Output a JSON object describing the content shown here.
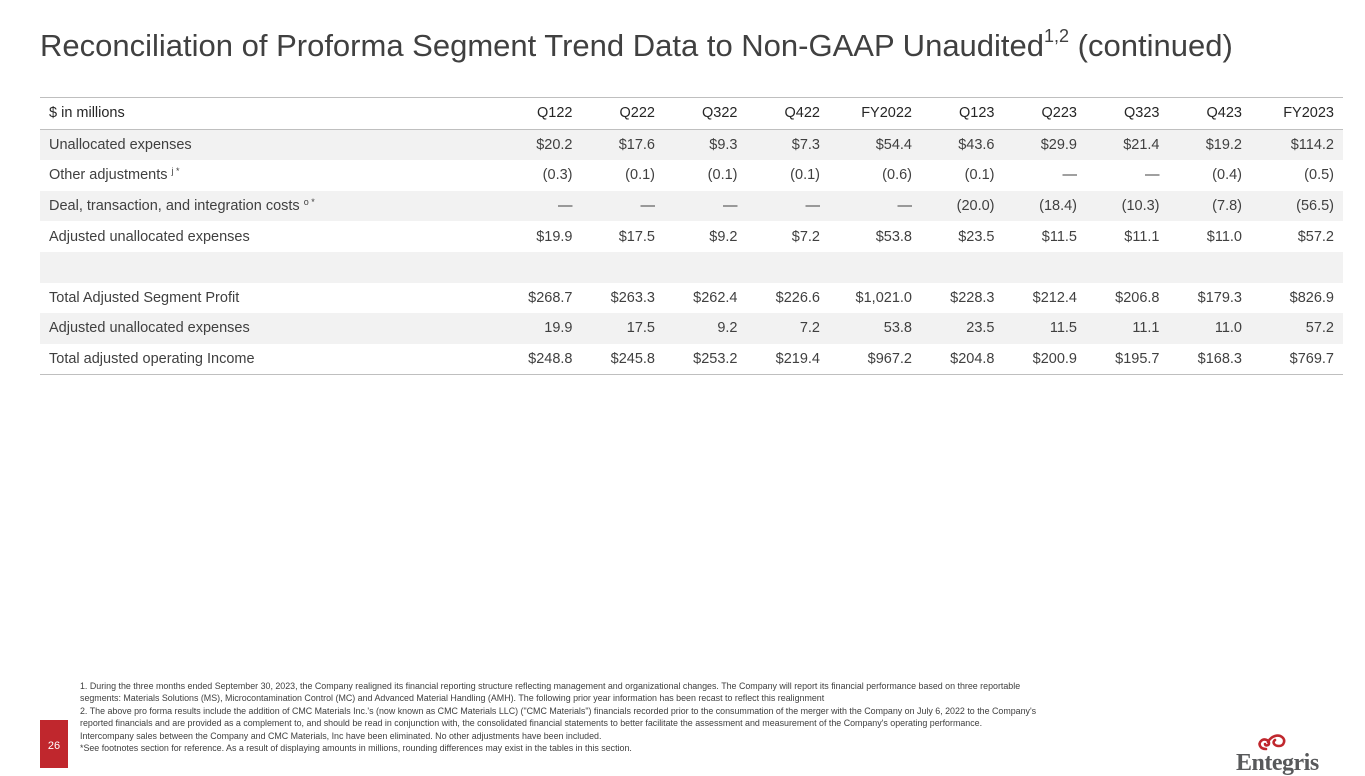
{
  "page": {
    "title_main": "Reconciliation of Proforma Segment Trend Data to Non-GAAP Unaudited",
    "title_sup": "1,2",
    "title_suffix": " (continued)",
    "page_number": "26",
    "logo_text": "Entegris"
  },
  "table": {
    "header_label": "$ in millions",
    "columns": [
      "Q122",
      "Q222",
      "Q322",
      "Q422",
      "FY2022",
      "Q123",
      "Q223",
      "Q323",
      "Q423",
      "FY2023"
    ],
    "rows": [
      {
        "label": "Unallocated expenses",
        "marker": "",
        "values": [
          "$20.2",
          "$17.6",
          "$9.3",
          "$7.3",
          "$54.4",
          "$43.6",
          "$29.9",
          "$21.4",
          "$19.2",
          "$114.2"
        ]
      },
      {
        "label": "Other adjustments",
        "marker": "j *",
        "values": [
          "(0.3)",
          "(0.1)",
          "(0.1)",
          "(0.1)",
          "(0.6)",
          "(0.1)",
          "—",
          "—",
          "(0.4)",
          "(0.5)"
        ]
      },
      {
        "label": "Deal, transaction, and integration costs",
        "marker": "o *",
        "values": [
          "—",
          "—",
          "—",
          "—",
          "—",
          "(20.0)",
          "(18.4)",
          "(10.3)",
          "(7.8)",
          "(56.5)"
        ]
      },
      {
        "label": "Adjusted unallocated expenses",
        "marker": "",
        "values": [
          "$19.9",
          "$17.5",
          "$9.2",
          "$7.2",
          "$53.8",
          "$23.5",
          "$11.5",
          "$11.1",
          "$11.0",
          "$57.2"
        ]
      },
      {
        "label": "",
        "marker": "",
        "values": [
          "",
          "",
          "",
          "",
          "",
          "",
          "",
          "",
          "",
          ""
        ]
      },
      {
        "label": "Total Adjusted Segment Profit",
        "marker": "",
        "values": [
          "$268.7",
          "$263.3",
          "$262.4",
          "$226.6",
          "$1,021.0",
          "$228.3",
          "$212.4",
          "$206.8",
          "$179.3",
          "$826.9"
        ]
      },
      {
        "label": "Adjusted unallocated expenses",
        "marker": "",
        "values": [
          "19.9",
          "17.5",
          "9.2",
          "7.2",
          "53.8",
          "23.5",
          "11.5",
          "11.1",
          "11.0",
          "57.2"
        ]
      },
      {
        "label": "Total adjusted operating Income",
        "marker": "",
        "values": [
          "$248.8",
          "$245.8",
          "$253.2",
          "$219.4",
          "$967.2",
          "$204.8",
          "$200.9",
          "$195.7",
          "$168.3",
          "$769.7"
        ]
      }
    ]
  },
  "footnotes": [
    "1. During the three months ended September 30, 2023, the Company realigned its financial reporting structure reflecting management and organizational changes. The Company will report its financial performance based on three reportable",
    "segments: Materials Solutions (MS), Microcontamination Control (MC) and Advanced Material Handling (AMH). The following prior year information has been recast to reflect this realignment",
    "2. The above pro forma results include the addition of CMC Materials Inc.'s (now known as CMC Materials LLC) (\"CMC Materials\") financials recorded prior to the consummation of the merger with the Company on July 6, 2022 to the Company's",
    "reported financials and are provided as a complement to, and should be read in conjunction with, the consolidated financial statements to better facilitate the assessment and measurement of the Company's operating performance.",
    "Intercompany sales between the Company and CMC Materials, Inc have been eliminated. No other adjustments have been included.",
    "*See footnotes section for reference. As a result of displaying amounts in millions, rounding differences may exist in the tables in this section."
  ],
  "colors": {
    "accent": "#c0272d",
    "row_shade": "#f2f2f2",
    "text": "#404040",
    "logo_gray": "#58595b"
  }
}
